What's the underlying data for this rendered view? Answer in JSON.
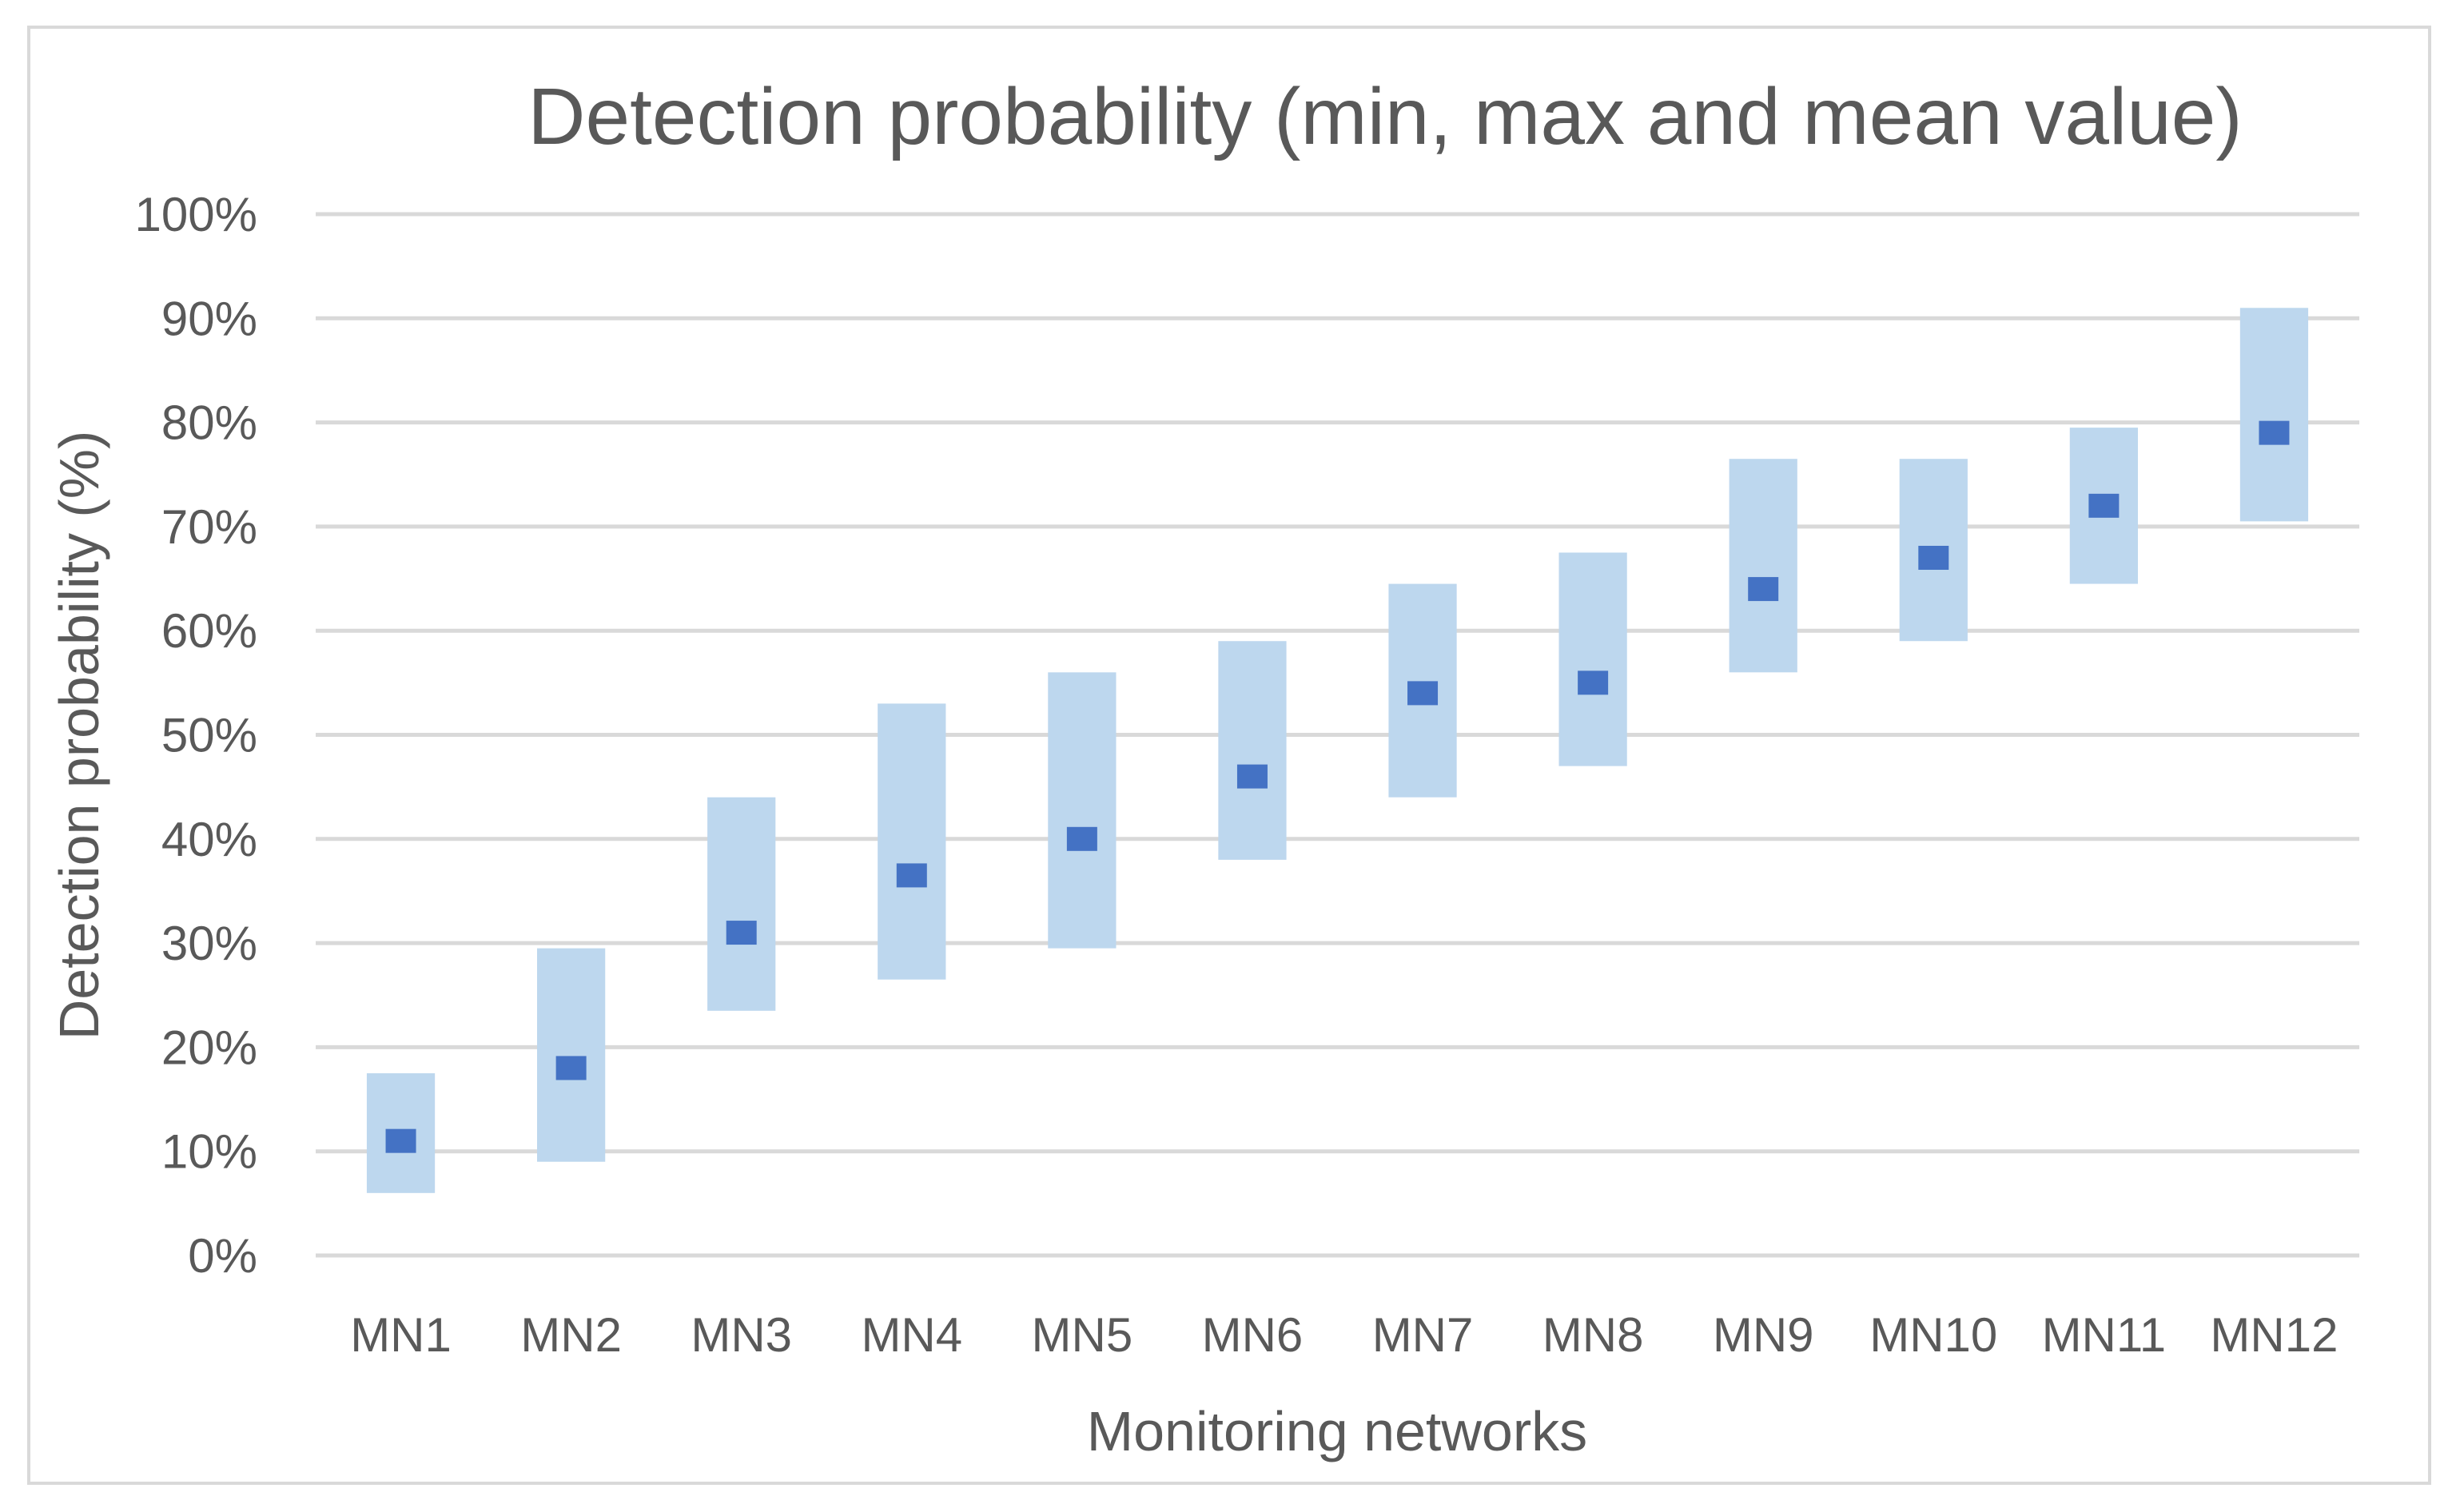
{
  "chart_data": {
    "type": "bar",
    "title": "Detection probability (min, max and mean value)",
    "xlabel": "Monitoring networks",
    "ylabel": "Detection probability (%)",
    "ylim": [
      0,
      100
    ],
    "yticks": [
      "0%",
      "10%",
      "20%",
      "30%",
      "40%",
      "50%",
      "60%",
      "70%",
      "80%",
      "90%",
      "100%"
    ],
    "grid": true,
    "categories": [
      "MN1",
      "MN2",
      "MN3",
      "MN4",
      "MN5",
      "MN6",
      "MN7",
      "MN8",
      "MN9",
      "MN10",
      "MN11",
      "MN12"
    ],
    "series": [
      {
        "name": "min",
        "values": [
          6,
          9,
          23.5,
          26.5,
          29.5,
          38,
          44,
          47,
          56,
          59,
          64.5,
          70.5
        ]
      },
      {
        "name": "max",
        "values": [
          17.5,
          29.5,
          44,
          53,
          56,
          59,
          64.5,
          67.5,
          76.5,
          76.5,
          79.5,
          91
        ]
      },
      {
        "name": "mean",
        "values": [
          11,
          18,
          31,
          36.5,
          40,
          46,
          54,
          55,
          64,
          67,
          72,
          79
        ]
      }
    ],
    "colors": {
      "range": "#bdd7ee",
      "mean": "#4472c4",
      "grid": "#d9d9d9",
      "text": "#595959"
    }
  }
}
